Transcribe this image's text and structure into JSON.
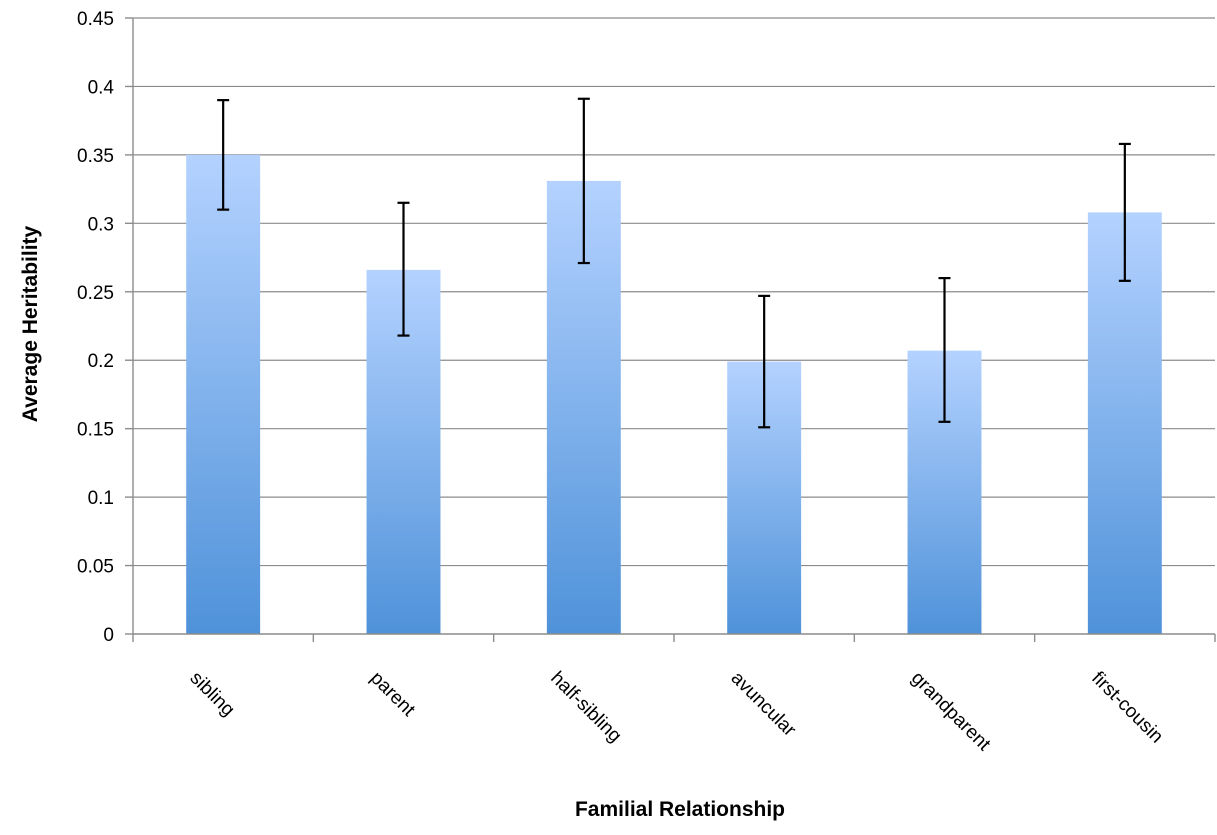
{
  "chart_data": {
    "type": "bar",
    "title": "",
    "xlabel": "Familial Relationship",
    "ylabel": "Average Heritability",
    "categories": [
      "sibling",
      "parent",
      "half-sibling",
      "avuncular",
      "grandparent",
      "first-cousin"
    ],
    "values": [
      0.35,
      0.266,
      0.331,
      0.199,
      0.207,
      0.308
    ],
    "error_low": [
      0.31,
      0.218,
      0.271,
      0.151,
      0.155,
      0.258
    ],
    "error_high": [
      0.39,
      0.315,
      0.391,
      0.247,
      0.26,
      0.358
    ],
    "ylim": [
      0,
      0.45
    ],
    "yticks": [
      0,
      0.05,
      0.1,
      0.15,
      0.2,
      0.25,
      0.3,
      0.35,
      0.4,
      0.45
    ],
    "ytick_labels": [
      "0",
      "0.05",
      "0.1",
      "0.15",
      "0.2",
      "0.25",
      "0.3",
      "0.35",
      "0.4",
      "0.45"
    ],
    "grid": true,
    "legend": "none",
    "colors": {
      "bar_top": "#b4d2ff",
      "bar_bottom": "#4f92d9",
      "grid": "#8c8c8c",
      "error_bar": "#000000"
    }
  }
}
